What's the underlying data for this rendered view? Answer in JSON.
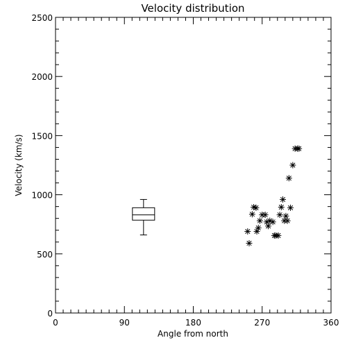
{
  "chart_data": {
    "type": "scatter",
    "title": "Velocity distribution",
    "xlabel": "Angle from north",
    "ylabel": "Velocity (km/s)",
    "xlim": [
      0,
      360
    ],
    "ylim": [
      0,
      2500
    ],
    "xticks": [
      "0",
      "90",
      "180",
      "270",
      "360"
    ],
    "yticks": [
      "0",
      "500",
      "1000",
      "1500",
      "2000",
      "2500"
    ],
    "x_minor_step": 10,
    "y_minor_step": 100,
    "grid": false,
    "boxplot": {
      "x": 115,
      "min": 660,
      "q1": 785,
      "median": 830,
      "q3": 890,
      "max": 960
    },
    "series": [
      {
        "marker": "asterisk",
        "points": [
          [
            251,
            690
          ],
          [
            253,
            590
          ],
          [
            257,
            835
          ],
          [
            259,
            895
          ],
          [
            262,
            890
          ],
          [
            263,
            690
          ],
          [
            265,
            720
          ],
          [
            267,
            780
          ],
          [
            270,
            830
          ],
          [
            274,
            830
          ],
          [
            276,
            770
          ],
          [
            278,
            735
          ],
          [
            280,
            780
          ],
          [
            284,
            770
          ],
          [
            286,
            655
          ],
          [
            288,
            655
          ],
          [
            291,
            655
          ],
          [
            293,
            830
          ],
          [
            295,
            895
          ],
          [
            297,
            960
          ],
          [
            299,
            780
          ],
          [
            301,
            820
          ],
          [
            303,
            780
          ],
          [
            305,
            1140
          ],
          [
            307,
            890
          ],
          [
            310,
            1250
          ],
          [
            313,
            1390
          ],
          [
            316,
            1390
          ],
          [
            318,
            1390
          ]
        ]
      }
    ]
  }
}
